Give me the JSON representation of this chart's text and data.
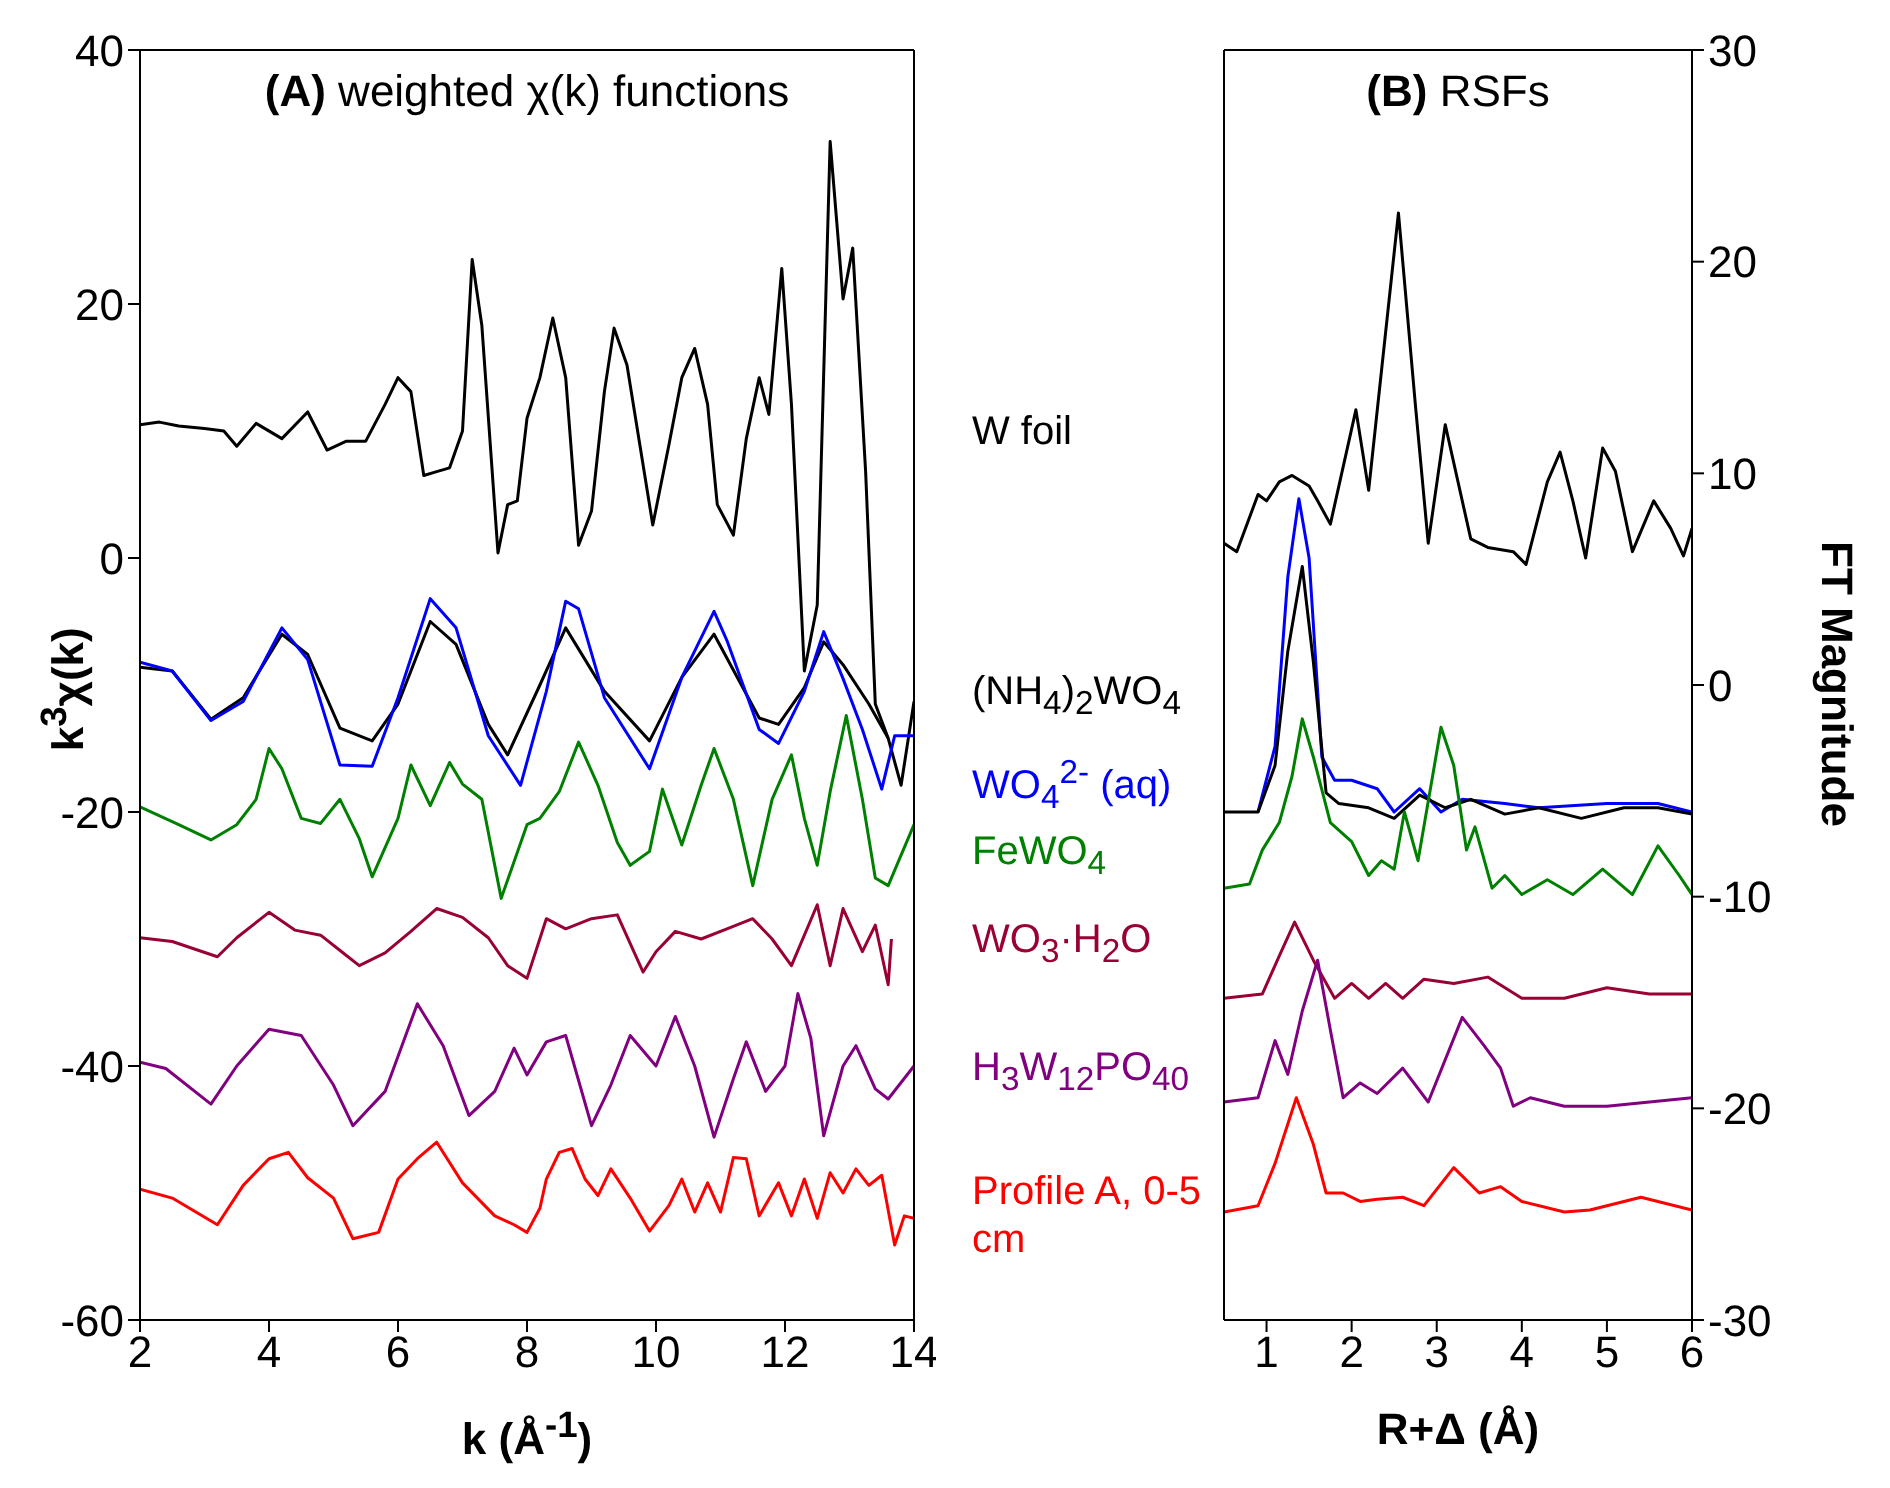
{
  "chart_data": [
    {
      "type": "line",
      "title": "(A) weighted χ(k) functions",
      "xlabel": "k (Å$^{-1}$)",
      "ylabel": "k$^{3}$χ(k)",
      "xlim": [
        2,
        14
      ],
      "ylim": [
        -60,
        40
      ],
      "xticks": [
        2,
        4,
        6,
        8,
        10,
        12,
        14
      ],
      "yticks": [
        -60,
        -40,
        -20,
        0,
        20,
        40
      ],
      "series": [
        {
          "name": "W foil",
          "color": "#000000",
          "x": [
            2,
            2.3,
            2.6,
            3.0,
            3.3,
            3.5,
            3.8,
            4.2,
            4.6,
            4.9,
            5.2,
            5.5,
            5.8,
            6.0,
            6.2,
            6.4,
            6.6,
            6.8,
            7.0,
            7.15,
            7.3,
            7.55,
            7.7,
            7.85,
            8.0,
            8.2,
            8.4,
            8.6,
            8.8,
            9.0,
            9.2,
            9.35,
            9.55,
            9.75,
            9.95,
            10.2,
            10.4,
            10.6,
            10.8,
            10.95,
            11.2,
            11.4,
            11.6,
            11.75,
            11.95,
            12.1,
            12.3,
            12.5,
            12.7,
            12.9,
            13.05,
            13.25,
            13.4,
            13.6
          ],
          "values": [
            10.5,
            10.7,
            10.4,
            10.2,
            10.0,
            8.8,
            10.6,
            9.4,
            11.5,
            8.5,
            9.2,
            9.2,
            12.1,
            14.2,
            13.1,
            6.5,
            6.8,
            7.1,
            10.0,
            23.5,
            18.3,
            0.4,
            4.2,
            4.5,
            11,
            14.2,
            18.9,
            14.2,
            1.0,
            3.7,
            13.1,
            18.1,
            15.2,
            8.9,
            2.6,
            8.9,
            14.2,
            16.5,
            12.1,
            4.2,
            1.8,
            9.4,
            14.2,
            11.3,
            22.8,
            12.1,
            -8.9,
            -3.7,
            32.8,
            20.4,
            24.4,
            6.8,
            -11.5,
            -14.2
          ]
        },
        {
          "name": "(NH$_{4}$)$_{2}$WO$_{4}$",
          "color": "#000000",
          "x": [
            2,
            2.5,
            3.1,
            3.6,
            4.2,
            4.6,
            5.1,
            5.6,
            6.0,
            6.5,
            6.9,
            7.4,
            7.7,
            8.2,
            8.6,
            9.2,
            9.9,
            10.4,
            10.9,
            11.6,
            11.9,
            12.3,
            12.6,
            12.9,
            13.3,
            13.6,
            13.8,
            14
          ],
          "values": [
            -8.6,
            -8.9,
            -12.7,
            -11,
            -6.0,
            -7.6,
            -13.4,
            -14.4,
            -11.5,
            -5.0,
            -6.8,
            -13.1,
            -15.5,
            -10.0,
            -5.5,
            -10.5,
            -14.4,
            -9.4,
            -6.0,
            -12.6,
            -13.1,
            -10.2,
            -6.6,
            -8.4,
            -11.5,
            -14.2,
            -17.9,
            -11.3
          ]
        },
        {
          "name": "WO$_{4}$$^{2-}$ (aq)",
          "color": "#0000ff",
          "x": [
            2,
            2.5,
            3.1,
            3.6,
            4.2,
            4.6,
            5.1,
            5.6,
            6.0,
            6.5,
            6.9,
            7.4,
            7.9,
            8.3,
            8.6,
            8.8,
            9.2,
            9.9,
            10.4,
            10.9,
            11.1,
            11.6,
            11.9,
            12.3,
            12.6,
            12.9,
            13.2,
            13.5,
            13.7,
            14
          ],
          "values": [
            -8.2,
            -8.9,
            -12.8,
            -11.3,
            -5.5,
            -8,
            -16.3,
            -16.4,
            -11,
            -3.2,
            -5.5,
            -14,
            -17.9,
            -10.5,
            -3.4,
            -4,
            -11,
            -16.6,
            -9.4,
            -4.2,
            -6.5,
            -13.5,
            -14.6,
            -10.5,
            -5.8,
            -9.5,
            -13.5,
            -18.2,
            -14,
            -14
          ]
        },
        {
          "name": "FeWO$_{4}$",
          "color": "#008000",
          "x": [
            2,
            2.6,
            3.1,
            3.5,
            3.8,
            4.0,
            4.2,
            4.5,
            4.8,
            5.1,
            5.4,
            5.6,
            6.0,
            6.2,
            6.5,
            6.8,
            7.0,
            7.3,
            7.6,
            8.0,
            8.2,
            8.5,
            8.8,
            9.1,
            9.4,
            9.6,
            9.9,
            10.1,
            10.4,
            10.7,
            10.9,
            11.2,
            11.5,
            11.8,
            12.1,
            12.3,
            12.5,
            12.7,
            12.95,
            13.2,
            13.4,
            13.6,
            14
          ],
          "values": [
            -19.6,
            -21,
            -22.2,
            -21,
            -19,
            -15,
            -16.6,
            -20.5,
            -20.9,
            -19,
            -22.1,
            -25.1,
            -20.5,
            -16.3,
            -19.5,
            -16.1,
            -17.8,
            -19,
            -26.8,
            -21,
            -20.5,
            -18.4,
            -14.5,
            -17.9,
            -22.4,
            -24.2,
            -23.1,
            -18.2,
            -22.6,
            -17.9,
            -15,
            -19,
            -25.8,
            -19,
            -15.5,
            -20.5,
            -24.2,
            -18.4,
            -12.4,
            -19,
            -25.2,
            -25.8,
            -21
          ]
        },
        {
          "name": "WO$_{3}$·H$_{2}$O",
          "color": "#990033",
          "x": [
            2,
            2.5,
            3.2,
            3.5,
            4.0,
            4.4,
            4.8,
            5.2,
            5.4,
            5.8,
            6.2,
            6.6,
            7.0,
            7.4,
            7.7,
            8.0,
            8.3,
            8.6,
            9.0,
            9.4,
            9.8,
            10.0,
            10.3,
            10.7,
            11.1,
            11.5,
            11.8,
            12.1,
            12.5,
            12.7,
            12.9,
            13.2,
            13.4,
            13.6,
            13.65
          ],
          "values": [
            -29.9,
            -30.2,
            -31.4,
            -29.9,
            -27.9,
            -29.3,
            -29.7,
            -31.3,
            -32.1,
            -31.1,
            -29.4,
            -27.6,
            -28.3,
            -29.9,
            -32.1,
            -33.1,
            -28.4,
            -29.2,
            -28.4,
            -28.1,
            -32.6,
            -31,
            -29.4,
            -30,
            -29.2,
            -28.4,
            -30,
            -32.1,
            -27.3,
            -32.1,
            -27.6,
            -31,
            -28.9,
            -33.6,
            -30
          ]
        },
        {
          "name": "H$_{3}$W$_{12}$PO$_{40}$",
          "color": "#800080",
          "x": [
            2,
            2.4,
            3.1,
            3.5,
            4.0,
            4.5,
            5.0,
            5.3,
            5.8,
            6.3,
            6.7,
            7.1,
            7.5,
            7.8,
            8.0,
            8.3,
            8.6,
            9.0,
            9.3,
            9.6,
            10.0,
            10.3,
            10.6,
            10.9,
            11.2,
            11.4,
            11.7,
            12.0,
            12.2,
            12.4,
            12.6,
            12.9,
            13.1,
            13.4,
            13.6,
            14
          ],
          "values": [
            -39.7,
            -40.2,
            -43,
            -40,
            -37.1,
            -37.6,
            -41.5,
            -44.7,
            -42,
            -35.1,
            -38.4,
            -43.9,
            -42,
            -38.6,
            -40.7,
            -38.1,
            -37.6,
            -44.7,
            -41.5,
            -37.6,
            -40,
            -36.1,
            -40,
            -45.6,
            -41,
            -38.1,
            -42,
            -40,
            -34.3,
            -37.8,
            -45.5,
            -40,
            -38.4,
            -41.8,
            -42.6,
            -40
          ]
        },
        {
          "name": "Profile A, 0-5 cm",
          "color": "#ff0000",
          "x": [
            2,
            2.5,
            3.2,
            3.6,
            4.0,
            4.3,
            4.6,
            5.0,
            5.3,
            5.7,
            6.0,
            6.3,
            6.6,
            7.0,
            7.5,
            7.8,
            8.0,
            8.2,
            8.3,
            8.5,
            8.7,
            8.9,
            9.1,
            9.3,
            9.6,
            9.9,
            10.2,
            10.4,
            10.6,
            10.8,
            11.0,
            11.2,
            11.4,
            11.6,
            11.9,
            12.1,
            12.3,
            12.5,
            12.7,
            12.9,
            13.1,
            13.3,
            13.5,
            13.7,
            13.85,
            14
          ],
          "values": [
            -49.7,
            -50.4,
            -52.5,
            -49.4,
            -47.3,
            -46.8,
            -48.8,
            -50.4,
            -53.6,
            -53.1,
            -48.9,
            -47.3,
            -46,
            -49.2,
            -51.8,
            -52.5,
            -53.1,
            -51.2,
            -48.9,
            -46.8,
            -46.5,
            -48.9,
            -50.2,
            -48.1,
            -50.4,
            -53,
            -51,
            -48.9,
            -51.5,
            -49.2,
            -51.5,
            -47.2,
            -47.3,
            -51.8,
            -49.2,
            -51.8,
            -48.9,
            -52,
            -48.4,
            -50,
            -48.1,
            -49.4,
            -48.6,
            -54.1,
            -51.8,
            -52
          ]
        }
      ]
    },
    {
      "type": "line",
      "title": "(B) RSFs",
      "xlabel": "R+Δ (Å)",
      "ylabel": "FT Magnitude",
      "xlim": [
        0.5,
        6
      ],
      "ylim": [
        -30,
        30
      ],
      "xticks": [
        1,
        2,
        3,
        4,
        5,
        6
      ],
      "yticks": [
        -30,
        -20,
        -10,
        0,
        10,
        20,
        30
      ],
      "series": [
        {
          "color": "#000000",
          "x": [
            0.5,
            0.65,
            0.9,
            1.0,
            1.15,
            1.3,
            1.5,
            1.6,
            1.75,
            2.05,
            2.2,
            2.55,
            2.75,
            2.9,
            3.1,
            3.4,
            3.6,
            3.9,
            4.05,
            4.3,
            4.45,
            4.6,
            4.75,
            4.95,
            5.1,
            5.3,
            5.55,
            5.75,
            5.9,
            6.0
          ],
          "values": [
            6.7,
            6.3,
            9.0,
            8.7,
            9.6,
            9.9,
            9.4,
            8.7,
            7.6,
            13.0,
            9.2,
            22.3,
            13.2,
            6.7,
            12.3,
            6.9,
            6.5,
            6.3,
            5.7,
            9.6,
            11.0,
            8.7,
            6.0,
            11.2,
            10.1,
            6.3,
            8.7,
            7.4,
            6.1,
            7.4
          ]
        },
        {
          "color": "#0000ff",
          "x": [
            0.9,
            1.1,
            1.25,
            1.38,
            1.5,
            1.65,
            1.8,
            2.0,
            2.3,
            2.5,
            2.8,
            3.05,
            3.3,
            3.8,
            4.2,
            5.0,
            5.6,
            6.0
          ],
          "values": [
            -6.0,
            -2.9,
            5.1,
            8.8,
            6.0,
            -3.4,
            -4.5,
            -4.5,
            -4.9,
            -6.0,
            -4.9,
            -6.0,
            -5.4,
            -5.6,
            -5.8,
            -5.6,
            -5.6,
            -6.0
          ]
        },
        {
          "color": "#000000",
          "x": [
            0.5,
            0.9,
            1.1,
            1.25,
            1.42,
            1.55,
            1.7,
            1.85,
            2.2,
            2.5,
            2.8,
            3.1,
            3.4,
            3.8,
            4.2,
            4.7,
            5.2,
            5.6,
            6.0
          ],
          "values": [
            -6.0,
            -6.0,
            -3.8,
            1.6,
            5.6,
            1.1,
            -5.1,
            -5.6,
            -5.8,
            -6.3,
            -5.2,
            -5.8,
            -5.4,
            -6.1,
            -5.8,
            -6.3,
            -5.8,
            -5.8,
            -6.1
          ]
        },
        {
          "color": "#008000",
          "x": [
            0.5,
            0.8,
            0.95,
            1.15,
            1.3,
            1.42,
            1.55,
            1.75,
            2.0,
            2.2,
            2.35,
            2.5,
            2.62,
            2.78,
            3.05,
            3.2,
            3.35,
            3.45,
            3.65,
            3.8,
            4.0,
            4.3,
            4.6,
            4.95,
            5.3,
            5.6,
            5.85,
            6.0
          ],
          "values": [
            -9.6,
            -9.4,
            -7.8,
            -6.5,
            -4.3,
            -1.6,
            -3.4,
            -6.5,
            -7.4,
            -9.0,
            -8.3,
            -8.7,
            -6.0,
            -8.3,
            -2.0,
            -3.8,
            -7.8,
            -6.7,
            -9.6,
            -9.0,
            -9.9,
            -9.2,
            -9.9,
            -8.7,
            -9.9,
            -7.6,
            -9.0,
            -9.9
          ]
        },
        {
          "color": "#990033",
          "x": [
            0.5,
            0.95,
            1.15,
            1.33,
            1.55,
            1.8,
            2.0,
            2.2,
            2.4,
            2.6,
            2.85,
            3.2,
            3.6,
            4.0,
            4.5,
            5.0,
            5.5,
            6.0
          ],
          "values": [
            -14.8,
            -14.6,
            -12.8,
            -11.2,
            -13.0,
            -14.8,
            -14.1,
            -14.8,
            -14.1,
            -14.8,
            -13.9,
            -14.1,
            -13.8,
            -14.8,
            -14.8,
            -14.3,
            -14.6,
            -14.6
          ]
        },
        {
          "color": "#800080",
          "x": [
            0.5,
            0.9,
            1.1,
            1.25,
            1.42,
            1.6,
            1.75,
            1.9,
            2.1,
            2.3,
            2.6,
            2.9,
            3.3,
            3.55,
            3.75,
            3.9,
            4.1,
            4.5,
            5.0,
            5.5,
            6.0
          ],
          "values": [
            -19.7,
            -19.5,
            -16.8,
            -18.4,
            -15.4,
            -13.0,
            -16.3,
            -19.5,
            -18.8,
            -19.3,
            -18.1,
            -19.7,
            -15.7,
            -17.0,
            -18.1,
            -19.9,
            -19.5,
            -19.9,
            -19.9,
            -19.7,
            -19.5
          ]
        },
        {
          "color": "#ff0000",
          "x": [
            0.5,
            0.9,
            1.1,
            1.35,
            1.55,
            1.7,
            1.9,
            2.1,
            2.3,
            2.6,
            2.85,
            3.2,
            3.5,
            3.75,
            4.0,
            4.5,
            4.8,
            5.4,
            6.0
          ],
          "values": [
            -24.9,
            -24.6,
            -22.6,
            -19.5,
            -21.7,
            -24.0,
            -24.0,
            -24.4,
            -24.3,
            -24.2,
            -24.6,
            -22.8,
            -24.0,
            -23.7,
            -24.4,
            -24.9,
            -24.8,
            -24.2,
            -24.8
          ]
        }
      ]
    }
  ]
}
